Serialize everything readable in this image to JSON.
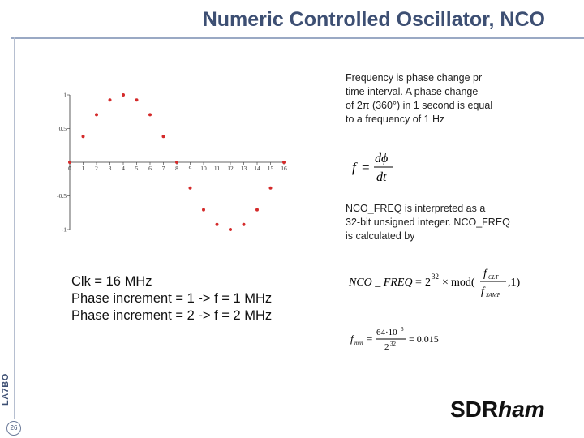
{
  "header": {
    "title": "Numeric Controlled Oscillator, NCO"
  },
  "sidebar": {
    "vertical_label": "LA7BO",
    "page_number": "26"
  },
  "text": {
    "freq_para": [
      "Frequency is phase change pr",
      "time interval. A phase change",
      "of 2π (360°) in 1 second is equal",
      "to a frequency of 1 Hz"
    ],
    "ncofreq_para": [
      "NCO_FREQ is interpreted as a",
      "32-bit unsigned integer. NCO_FREQ",
      "is calculated by"
    ],
    "clk_lines": [
      "Clk = 16 MHz",
      "Phase increment = 1 -> f = 1 MHz",
      "Phase increment = 2 -> f = 2 MHz"
    ]
  },
  "formulas": {
    "derivative": {
      "lhs": "f",
      "equals": "=",
      "numerator": "dϕ",
      "denominator": "dt"
    },
    "nco_freq": {
      "lhs": "NCO _ FREQ",
      "equals": "=",
      "base": "2",
      "exponent": "32",
      "times": "×",
      "func": "mod(",
      "numerator": "f",
      "numerator_sub": "CLT",
      "denominator": "f",
      "denominator_sub": "SAMP",
      "tail": ",1)"
    },
    "fmin": {
      "lhs": "f",
      "lhs_sub": "min",
      "equals": "=",
      "numerator": "64·10",
      "numerator_sup": "6",
      "denominator": "2",
      "denominator_sup": "32",
      "result": "= 0.015"
    }
  },
  "brand": {
    "regular": "SDR",
    "italic": "ham"
  },
  "chart_data": {
    "type": "scatter",
    "title": "",
    "xlabel": "",
    "ylabel": "",
    "xlim": [
      0,
      16
    ],
    "ylim": [
      -1,
      1
    ],
    "x_ticks": [
      "0",
      "1",
      "2",
      "3",
      "4",
      "5",
      "6",
      "7",
      "8",
      "9",
      "10",
      "11",
      "12",
      "13",
      "14",
      "15",
      "16"
    ],
    "y_ticks": [
      {
        "value": 1,
        "label": "1"
      },
      {
        "value": 0.5,
        "label": "0.5"
      },
      {
        "value": -0.5,
        "label": "-0.5"
      },
      {
        "value": -1,
        "label": "-1"
      }
    ],
    "grid": false,
    "marker_color": "#d42a2a",
    "axis_color": "#333333",
    "x": [
      0,
      1,
      2,
      3,
      4,
      5,
      6,
      7,
      8,
      9,
      10,
      11,
      12,
      13,
      14,
      15,
      16
    ],
    "y": [
      0,
      0.383,
      0.707,
      0.924,
      1,
      0.924,
      0.707,
      0.383,
      0,
      -0.383,
      -0.707,
      -0.924,
      -1,
      -0.924,
      -0.707,
      -0.383,
      0
    ]
  }
}
